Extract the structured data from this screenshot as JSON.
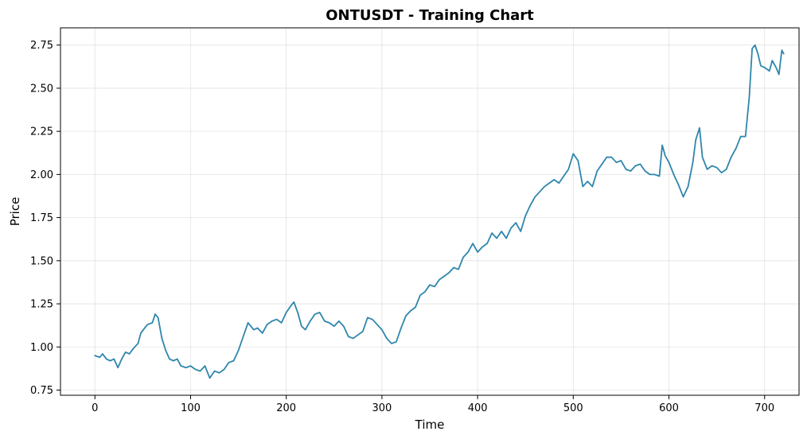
{
  "chart_data": {
    "type": "line",
    "title": "ONTUSDT - Training Chart",
    "xlabel": "Time",
    "ylabel": "Price",
    "xlim": [
      -36,
      736
    ],
    "ylim": [
      0.72,
      2.85
    ],
    "xticks": [
      0,
      100,
      200,
      300,
      400,
      500,
      600,
      700
    ],
    "yticks": [
      0.75,
      1.0,
      1.25,
      1.5,
      1.75,
      2.0,
      2.25,
      2.5,
      2.75
    ],
    "ytick_labels": [
      "0.75",
      "1.00",
      "1.25",
      "1.50",
      "1.75",
      "2.00",
      "2.25",
      "2.50",
      "2.75"
    ],
    "grid": true,
    "line_color": "#2e86ab",
    "series": [
      {
        "x": [
          0,
          5,
          8,
          12,
          16,
          20,
          24,
          28,
          32,
          36,
          40,
          45,
          48,
          52,
          55,
          60,
          63,
          66,
          70,
          74,
          78,
          82,
          86,
          90,
          95,
          100,
          105,
          110,
          115,
          120,
          125,
          130,
          135,
          140,
          145,
          150,
          155,
          160,
          163,
          166,
          170,
          175,
          180,
          185,
          190,
          195,
          200,
          205,
          208,
          212,
          216,
          220,
          225,
          230,
          235,
          240,
          245,
          250,
          255,
          260,
          265,
          270,
          275,
          280,
          285,
          290,
          295,
          300,
          305,
          310,
          315,
          320,
          325,
          330,
          335,
          340,
          345,
          350,
          355,
          360,
          365,
          370,
          375,
          380,
          385,
          390,
          395,
          400,
          405,
          410,
          415,
          420,
          425,
          430,
          435,
          440,
          445,
          450,
          455,
          460,
          465,
          470,
          475,
          480,
          485,
          490,
          495,
          500,
          505,
          510,
          515,
          520,
          525,
          530,
          535,
          540,
          545,
          550,
          555,
          560,
          565,
          570,
          575,
          580,
          585,
          590,
          593,
          596,
          600,
          605,
          610,
          615,
          620,
          625,
          628,
          632,
          635,
          640,
          645,
          650,
          655,
          660,
          665,
          670,
          675,
          680,
          684,
          687,
          690,
          693,
          696,
          700,
          705,
          708,
          712,
          715,
          718,
          720
        ],
        "y": [
          0.95,
          0.94,
          0.96,
          0.93,
          0.92,
          0.93,
          0.88,
          0.93,
          0.97,
          0.96,
          0.99,
          1.02,
          1.08,
          1.11,
          1.13,
          1.14,
          1.19,
          1.17,
          1.05,
          0.98,
          0.93,
          0.92,
          0.93,
          0.89,
          0.88,
          0.89,
          0.87,
          0.86,
          0.89,
          0.82,
          0.86,
          0.85,
          0.87,
          0.91,
          0.92,
          0.98,
          1.06,
          1.14,
          1.12,
          1.1,
          1.11,
          1.08,
          1.13,
          1.15,
          1.16,
          1.14,
          1.2,
          1.24,
          1.26,
          1.2,
          1.12,
          1.1,
          1.15,
          1.19,
          1.2,
          1.15,
          1.14,
          1.12,
          1.15,
          1.12,
          1.06,
          1.05,
          1.07,
          1.09,
          1.17,
          1.16,
          1.13,
          1.1,
          1.05,
          1.02,
          1.03,
          1.11,
          1.18,
          1.21,
          1.23,
          1.3,
          1.32,
          1.36,
          1.35,
          1.39,
          1.41,
          1.43,
          1.46,
          1.45,
          1.52,
          1.55,
          1.6,
          1.55,
          1.58,
          1.6,
          1.66,
          1.63,
          1.67,
          1.63,
          1.69,
          1.72,
          1.67,
          1.76,
          1.82,
          1.87,
          1.9,
          1.93,
          1.95,
          1.97,
          1.95,
          1.99,
          2.03,
          2.12,
          2.08,
          1.93,
          1.96,
          1.93,
          2.02,
          2.06,
          2.1,
          2.1,
          2.07,
          2.08,
          2.03,
          2.02,
          2.05,
          2.06,
          2.02,
          2.0,
          2.0,
          1.99,
          2.17,
          2.11,
          2.07,
          2.0,
          1.94,
          1.87,
          1.93,
          2.07,
          2.2,
          2.27,
          2.1,
          2.03,
          2.05,
          2.04,
          2.01,
          2.03,
          2.1,
          2.15,
          2.22,
          2.22,
          2.45,
          2.73,
          2.75,
          2.7,
          2.63,
          2.62,
          2.6,
          2.66,
          2.62,
          2.58,
          2.72,
          2.7
        ]
      }
    ]
  }
}
